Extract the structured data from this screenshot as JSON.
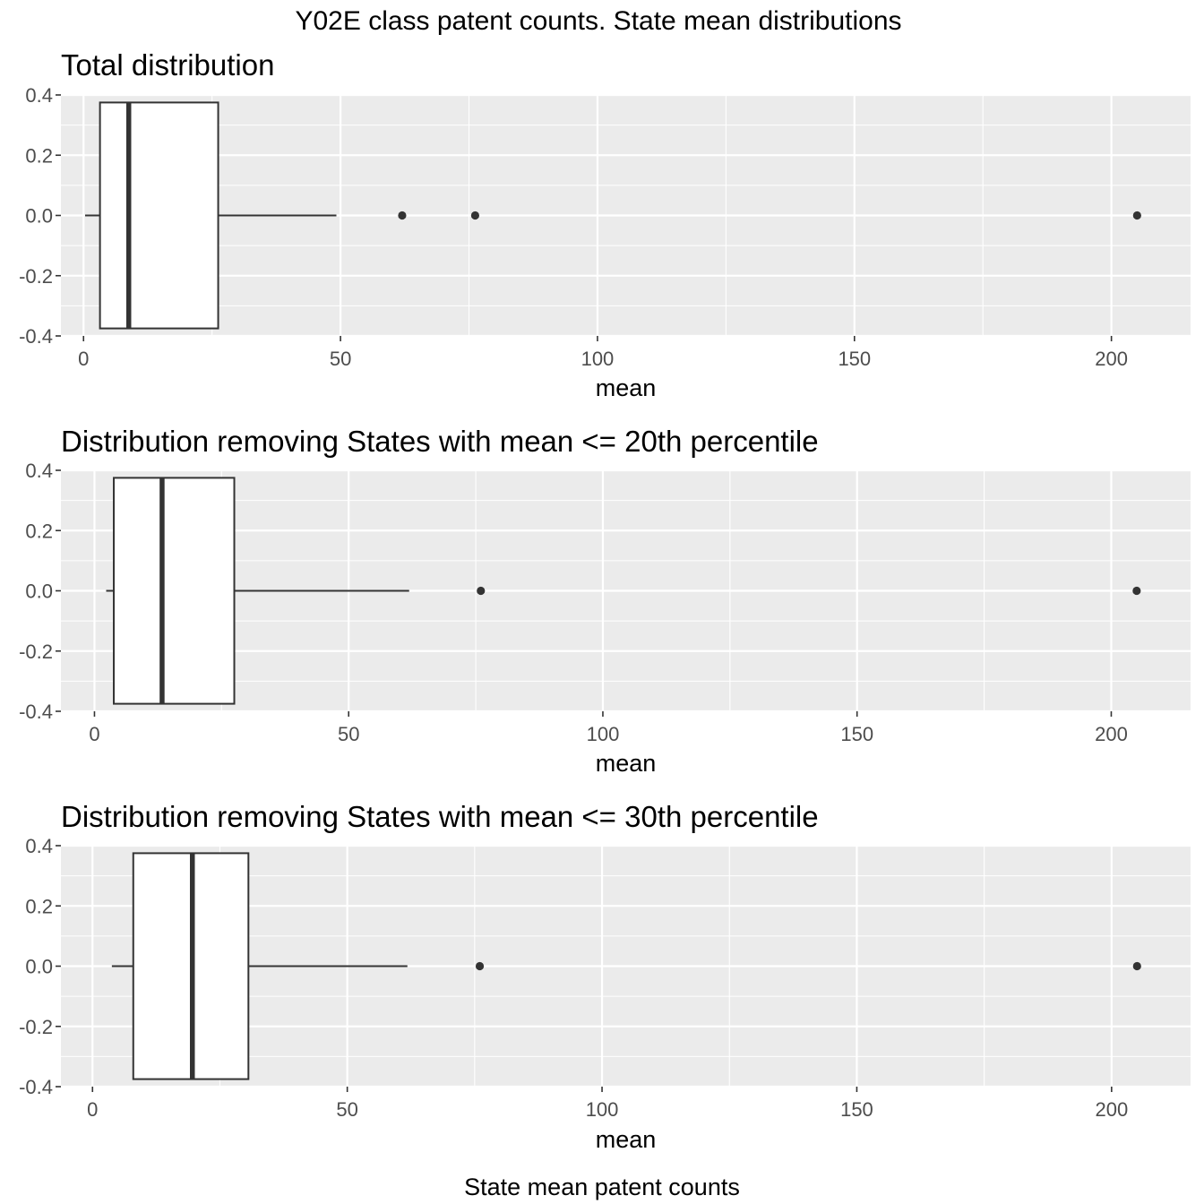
{
  "figure": {
    "title": "Y02E class patent counts. State mean distributions",
    "caption": "State mean patent counts"
  },
  "chart_data": [
    {
      "type": "boxplot",
      "title": "Total distribution",
      "xlabel": "mean",
      "ylabel": "",
      "xlim": [
        -4.4,
        215.4
      ],
      "ylim": [
        -0.4,
        0.4
      ],
      "xticks": [
        0,
        50,
        100,
        150,
        200
      ],
      "xtick_labels": [
        "0",
        "50",
        "100",
        "150",
        "200"
      ],
      "yticks": [
        -0.4,
        -0.2,
        0.0,
        0.2,
        0.4
      ],
      "ytick_labels": [
        "-0.4",
        "-0.2",
        "0.0",
        "0.2",
        "0.4"
      ],
      "grid": true,
      "box": {
        "whisker_low": 0.3,
        "q1": 3.2,
        "median": 8.8,
        "q3": 26.2,
        "whisker_high": 49.2
      },
      "outliers": [
        62.0,
        76.2,
        205.0
      ]
    },
    {
      "type": "boxplot",
      "title": "Distribution removing States with mean <= 20th percentile",
      "xlabel": "mean",
      "ylabel": "",
      "xlim": [
        -6.6,
        215.6
      ],
      "ylim": [
        -0.4,
        0.4
      ],
      "xticks": [
        0,
        50,
        100,
        150,
        200
      ],
      "xtick_labels": [
        "0",
        "50",
        "100",
        "150",
        "200"
      ],
      "yticks": [
        -0.4,
        -0.2,
        0.0,
        0.2,
        0.4
      ],
      "ytick_labels": [
        "-0.4",
        "-0.2",
        "0.0",
        "0.2",
        "0.4"
      ],
      "grid": true,
      "box": {
        "whisker_low": 2.3,
        "q1": 3.8,
        "median": 13.3,
        "q3": 27.5,
        "whisker_high": 61.9
      },
      "outliers": [
        76.0,
        205.0
      ]
    },
    {
      "type": "boxplot",
      "title": "Distribution removing States with mean <= 30th percentile",
      "xlabel": "mean",
      "ylabel": "",
      "xlim": [
        -6.2,
        215.5
      ],
      "ylim": [
        -0.4,
        0.4
      ],
      "xticks": [
        0,
        50,
        100,
        150,
        200
      ],
      "xtick_labels": [
        "0",
        "50",
        "100",
        "150",
        "200"
      ],
      "yticks": [
        -0.4,
        -0.2,
        0.0,
        0.2,
        0.4
      ],
      "ytick_labels": [
        "-0.4",
        "-0.2",
        "0.0",
        "0.2",
        "0.4"
      ],
      "grid": true,
      "box": {
        "whisker_low": 3.8,
        "q1": 8.0,
        "median": 19.6,
        "q3": 30.6,
        "whisker_high": 61.8
      },
      "outliers": [
        76.0,
        205.0
      ]
    }
  ],
  "colors": {
    "panel_background": "#ebebeb",
    "grid_major": "#ffffff",
    "box_fill": "#ffffff",
    "box_line": "#333333",
    "tick_text": "#4d4d4d",
    "text": "#000000"
  }
}
